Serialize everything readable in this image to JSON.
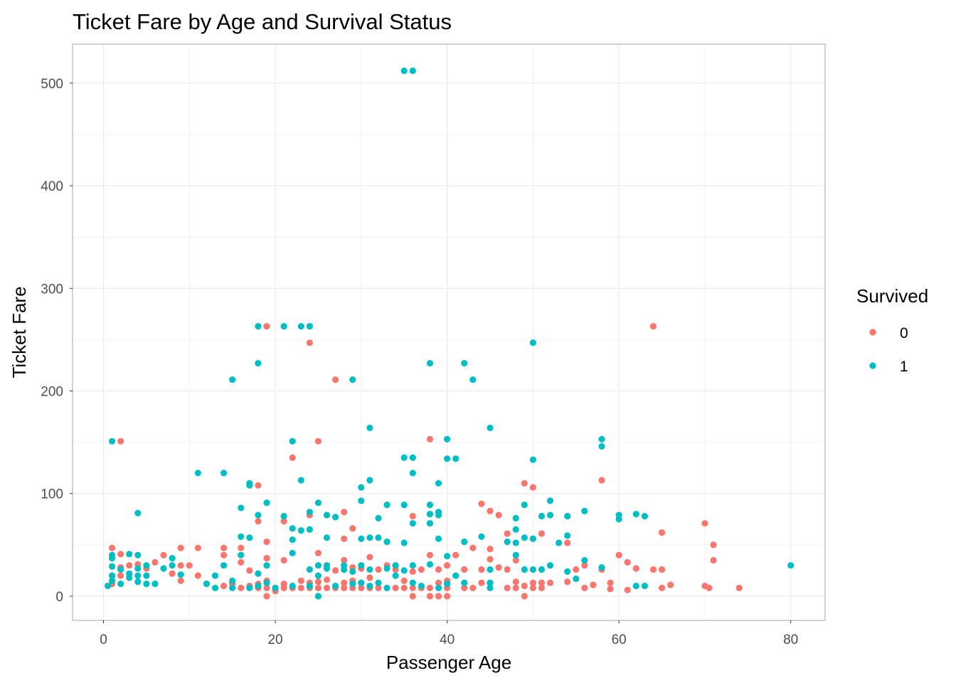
{
  "chart_data": {
    "type": "scatter",
    "title": "Ticket Fare by Age and Survival Status",
    "xlabel": "Passenger Age",
    "ylabel": "Ticket Fare",
    "xlim": [
      -3.6,
      84
    ],
    "ylim": [
      -23.6,
      538
    ],
    "xticks": [
      0,
      20,
      40,
      60,
      80
    ],
    "yticks": [
      0,
      100,
      200,
      300,
      400,
      500
    ],
    "grid": true,
    "legend": {
      "title": "Survived",
      "placement": "right"
    },
    "series": [
      {
        "name": "0",
        "color": "#F8766D",
        "points": [
          [
            19,
            263
          ],
          [
            64,
            263
          ],
          [
            24,
            247
          ],
          [
            27,
            211
          ],
          [
            2,
            151
          ],
          [
            25,
            151
          ],
          [
            38,
            153
          ],
          [
            22,
            135
          ],
          [
            58,
            113
          ],
          [
            18,
            108
          ],
          [
            49,
            110
          ],
          [
            50,
            106
          ],
          [
            44,
            90
          ],
          [
            45,
            83
          ],
          [
            46,
            79
          ],
          [
            28,
            82
          ],
          [
            24,
            79
          ],
          [
            21,
            73
          ],
          [
            18,
            73
          ],
          [
            29,
            66
          ],
          [
            47,
            61
          ],
          [
            51,
            61
          ],
          [
            65,
            62
          ],
          [
            70,
            71
          ],
          [
            71,
            50
          ],
          [
            19,
            53
          ],
          [
            28,
            56
          ],
          [
            33,
            53
          ],
          [
            36,
            78
          ],
          [
            43,
            47
          ],
          [
            45,
            46
          ],
          [
            50,
            56
          ],
          [
            54,
            52
          ],
          [
            71,
            35
          ],
          [
            61,
            33
          ],
          [
            60,
            40
          ],
          [
            62,
            27
          ],
          [
            64,
            26
          ],
          [
            65,
            26
          ],
          [
            66,
            11
          ],
          [
            65,
            8
          ],
          [
            61,
            6
          ],
          [
            59,
            13
          ],
          [
            70,
            10
          ],
          [
            70.5,
            8
          ],
          [
            74,
            8
          ],
          [
            2,
            41
          ],
          [
            1,
            47
          ],
          [
            7,
            40
          ],
          [
            9,
            47
          ],
          [
            11,
            47
          ],
          [
            14,
            47
          ],
          [
            16,
            47
          ],
          [
            14,
            40
          ],
          [
            6,
            33
          ],
          [
            8,
            22
          ],
          [
            9,
            15
          ],
          [
            10,
            30
          ],
          [
            11,
            20
          ],
          [
            16,
            33
          ],
          [
            17,
            25
          ],
          [
            19,
            37
          ],
          [
            21,
            35
          ],
          [
            23,
            15
          ],
          [
            25,
            42
          ],
          [
            26,
            30
          ],
          [
            27,
            25
          ],
          [
            28,
            35
          ],
          [
            29,
            28
          ],
          [
            30,
            27
          ],
          [
            31,
            38
          ],
          [
            32,
            26
          ],
          [
            34,
            26
          ],
          [
            37,
            26
          ],
          [
            38,
            40
          ],
          [
            39,
            26
          ],
          [
            40,
            30
          ],
          [
            41,
            40
          ],
          [
            42,
            26
          ],
          [
            44,
            26
          ],
          [
            45,
            36
          ],
          [
            46,
            28
          ],
          [
            47,
            26
          ],
          [
            48,
            35
          ],
          [
            49,
            0
          ],
          [
            19,
            0
          ],
          [
            36,
            0
          ],
          [
            38,
            0
          ],
          [
            39,
            0
          ],
          [
            40,
            0
          ],
          [
            20,
            5
          ],
          [
            16,
            8
          ],
          [
            17,
            10
          ],
          [
            18,
            8
          ],
          [
            18,
            12
          ],
          [
            19,
            8
          ],
          [
            19,
            15
          ],
          [
            20,
            8
          ],
          [
            21,
            8
          ],
          [
            21,
            12
          ],
          [
            22,
            8
          ],
          [
            23,
            8
          ],
          [
            24,
            8
          ],
          [
            25,
            8
          ],
          [
            25,
            14
          ],
          [
            26,
            8
          ],
          [
            26,
            16
          ],
          [
            27,
            8
          ],
          [
            28,
            8
          ],
          [
            28,
            13
          ],
          [
            29,
            8
          ],
          [
            30,
            8
          ],
          [
            30,
            13
          ],
          [
            31,
            8
          ],
          [
            32,
            8
          ],
          [
            33,
            8
          ],
          [
            34,
            8
          ],
          [
            35,
            8
          ],
          [
            36,
            8
          ],
          [
            36,
            24
          ],
          [
            37,
            8
          ],
          [
            38,
            8
          ],
          [
            39,
            13
          ],
          [
            40,
            8
          ],
          [
            42,
            8
          ],
          [
            43,
            8
          ],
          [
            44,
            13
          ],
          [
            45,
            13
          ],
          [
            47,
            8
          ],
          [
            48,
            8
          ],
          [
            48,
            14
          ],
          [
            49,
            10
          ],
          [
            50,
            8
          ],
          [
            50,
            13
          ],
          [
            51,
            8
          ],
          [
            51,
            13
          ],
          [
            52,
            13
          ],
          [
            54,
            14
          ],
          [
            56,
            8
          ],
          [
            57,
            11
          ],
          [
            58,
            26
          ],
          [
            59,
            7
          ],
          [
            55,
            26
          ],
          [
            56,
            30
          ],
          [
            2,
            20
          ],
          [
            3,
            30
          ],
          [
            4,
            31
          ],
          [
            5,
            27
          ],
          [
            2,
            28
          ],
          [
            9,
            30
          ],
          [
            1,
            12
          ],
          [
            12,
            12
          ],
          [
            14,
            10
          ],
          [
            15,
            12
          ],
          [
            24,
            13
          ],
          [
            29,
            15
          ],
          [
            31,
            18
          ],
          [
            33,
            30
          ],
          [
            35,
            15
          ],
          [
            40,
            15
          ]
        ]
      },
      {
        "name": "1",
        "color": "#00BFC4",
        "points": [
          [
            35,
            512
          ],
          [
            36,
            512
          ],
          [
            18,
            263
          ],
          [
            21,
            263
          ],
          [
            23,
            263
          ],
          [
            24,
            263
          ],
          [
            18,
            227
          ],
          [
            15,
            211
          ],
          [
            29,
            211
          ],
          [
            38,
            227
          ],
          [
            42,
            227
          ],
          [
            43,
            211
          ],
          [
            50,
            247
          ],
          [
            1,
            151
          ],
          [
            22,
            151
          ],
          [
            31,
            164
          ],
          [
            40,
            153
          ],
          [
            45,
            164
          ],
          [
            58,
            153
          ],
          [
            58,
            146
          ],
          [
            35,
            135
          ],
          [
            36,
            135
          ],
          [
            40,
            134
          ],
          [
            41,
            134
          ],
          [
            50,
            133
          ],
          [
            11,
            120
          ],
          [
            14,
            120
          ],
          [
            36,
            120
          ],
          [
            17,
            110
          ],
          [
            17,
            108
          ],
          [
            23,
            113
          ],
          [
            31,
            113
          ],
          [
            39,
            110
          ],
          [
            30,
            106
          ],
          [
            16,
            86
          ],
          [
            19,
            91
          ],
          [
            25,
            91
          ],
          [
            30,
            93
          ],
          [
            33,
            89
          ],
          [
            35,
            89
          ],
          [
            38,
            89
          ],
          [
            52,
            93
          ],
          [
            49,
            89
          ],
          [
            4,
            81
          ],
          [
            18,
            79
          ],
          [
            21,
            78
          ],
          [
            24,
            82
          ],
          [
            26,
            79
          ],
          [
            27,
            77
          ],
          [
            32,
            76
          ],
          [
            38,
            80
          ],
          [
            39,
            82
          ],
          [
            39,
            79
          ],
          [
            48,
            76
          ],
          [
            51,
            78
          ],
          [
            52,
            79
          ],
          [
            54,
            78
          ],
          [
            56,
            83
          ],
          [
            60,
            79
          ],
          [
            60,
            75
          ],
          [
            62,
            80
          ],
          [
            63,
            78
          ],
          [
            16,
            58
          ],
          [
            17,
            57
          ],
          [
            22,
            66
          ],
          [
            23,
            64
          ],
          [
            24,
            65
          ],
          [
            22,
            55
          ],
          [
            26,
            57
          ],
          [
            30,
            56
          ],
          [
            31,
            57
          ],
          [
            32,
            57
          ],
          [
            33,
            53
          ],
          [
            35,
            52
          ],
          [
            36,
            71
          ],
          [
            38,
            71
          ],
          [
            39,
            56
          ],
          [
            42,
            53
          ],
          [
            44,
            58
          ],
          [
            47,
            53
          ],
          [
            48,
            52
          ],
          [
            48,
            65
          ],
          [
            49,
            57
          ],
          [
            50,
            56
          ],
          [
            53,
            52
          ],
          [
            54,
            59
          ],
          [
            22,
            42
          ],
          [
            16,
            40
          ],
          [
            4,
            40
          ],
          [
            1,
            40
          ],
          [
            1,
            37
          ],
          [
            3,
            41
          ],
          [
            8,
            37
          ],
          [
            19,
            30
          ],
          [
            14,
            30
          ],
          [
            25,
            30
          ],
          [
            26,
            30
          ],
          [
            28,
            30
          ],
          [
            30,
            30
          ],
          [
            34,
            30
          ],
          [
            36,
            30
          ],
          [
            38,
            31
          ],
          [
            40,
            39
          ],
          [
            41,
            20
          ],
          [
            45,
            26
          ],
          [
            48,
            40
          ],
          [
            49,
            26
          ],
          [
            50,
            26
          ],
          [
            51,
            26
          ],
          [
            52,
            30
          ],
          [
            54,
            24
          ],
          [
            55,
            17
          ],
          [
            56,
            35
          ],
          [
            58,
            28
          ],
          [
            62,
            10
          ],
          [
            63,
            10
          ],
          [
            80,
            30
          ],
          [
            0.5,
            10
          ],
          [
            1,
            15
          ],
          [
            1,
            20
          ],
          [
            1,
            29
          ],
          [
            2,
            12
          ],
          [
            2,
            26
          ],
          [
            3,
            18
          ],
          [
            3,
            22
          ],
          [
            4,
            14
          ],
          [
            4,
            20
          ],
          [
            4,
            27
          ],
          [
            5,
            12
          ],
          [
            5,
            20
          ],
          [
            5,
            30
          ],
          [
            6,
            12
          ],
          [
            7,
            27
          ],
          [
            8,
            30
          ],
          [
            9,
            21
          ],
          [
            12,
            12
          ],
          [
            13,
            20
          ],
          [
            13,
            8
          ],
          [
            15,
            8
          ],
          [
            15,
            15
          ],
          [
            17,
            8
          ],
          [
            18,
            10
          ],
          [
            19,
            13
          ],
          [
            20,
            8
          ],
          [
            22,
            10
          ],
          [
            24,
            10
          ],
          [
            25,
            0
          ],
          [
            25,
            20
          ],
          [
            27,
            10
          ],
          [
            29,
            12
          ],
          [
            30,
            13
          ],
          [
            31,
            10
          ],
          [
            32,
            13
          ],
          [
            33,
            8
          ],
          [
            34,
            20
          ],
          [
            35,
            25
          ],
          [
            36,
            13
          ],
          [
            37,
            10
          ],
          [
            39,
            8
          ],
          [
            40,
            12
          ],
          [
            42,
            13
          ],
          [
            45,
            8
          ],
          [
            45,
            13
          ],
          [
            18,
            22
          ],
          [
            24,
            26
          ],
          [
            26,
            27
          ],
          [
            28,
            26
          ],
          [
            29,
            24
          ],
          [
            31,
            26
          ],
          [
            33,
            27
          ]
        ]
      }
    ]
  }
}
